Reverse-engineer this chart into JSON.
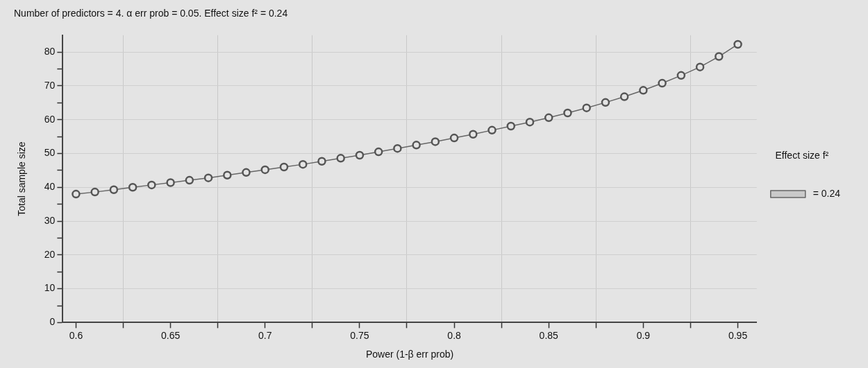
{
  "chart_data": {
    "type": "line",
    "title": "Number of predictors = 4. α err prob = 0.05. Effect size f² = 0.24",
    "xlabel": "Power (1-β err prob)",
    "ylabel": "Total sample size",
    "legend_title": "Effect size f²",
    "x": [
      0.6,
      0.61,
      0.62,
      0.63,
      0.64,
      0.65,
      0.66,
      0.67,
      0.68,
      0.69,
      0.7,
      0.71,
      0.72,
      0.73,
      0.74,
      0.75,
      0.76,
      0.77,
      0.78,
      0.79,
      0.8,
      0.81,
      0.82,
      0.83,
      0.84,
      0.85,
      0.86,
      0.87,
      0.88,
      0.89,
      0.9,
      0.91,
      0.92,
      0.93,
      0.94,
      0.95
    ],
    "series": [
      {
        "name": " = 0.24",
        "color": "#666666",
        "values": [
          38,
          38.6,
          39.3,
          40,
          40.7,
          41.4,
          42.1,
          42.8,
          43.6,
          44.4,
          45.2,
          46,
          46.8,
          47.7,
          48.6,
          49.5,
          50.5,
          51.5,
          52.5,
          53.5,
          54.6,
          55.7,
          56.9,
          58.1,
          59.3,
          60.6,
          62,
          63.5,
          65.1,
          66.8,
          68.7,
          70.8,
          73.1,
          75.6,
          78.7,
          82.3
        ]
      }
    ],
    "xlim": [
      0.593,
      0.96
    ],
    "xticks": [
      0.6,
      {
        "value": 0.625,
        "label": null
      },
      0.65,
      {
        "value": 0.675,
        "label": null
      },
      0.7,
      {
        "value": 0.725,
        "label": null
      },
      0.75,
      {
        "value": 0.775,
        "label": null
      },
      0.8,
      {
        "value": 0.825,
        "label": null
      },
      0.85,
      {
        "value": 0.875,
        "label": null
      },
      0.9,
      {
        "value": 0.925,
        "label": null
      },
      0.95
    ],
    "ylim": [
      0,
      85
    ],
    "yticks": [
      0,
      {
        "value": 5,
        "label": null
      },
      10,
      {
        "value": 15,
        "label": null
      },
      20,
      {
        "value": 25,
        "label": null
      },
      30,
      {
        "value": 35,
        "label": null
      },
      40,
      {
        "value": 45,
        "label": null
      },
      50,
      {
        "value": 55,
        "label": null
      },
      60,
      {
        "value": 65,
        "label": null
      },
      70,
      {
        "value": 75,
        "label": null
      },
      80
    ],
    "grid": true,
    "legend": "right",
    "marker": "circle",
    "line_style": "solid"
  }
}
